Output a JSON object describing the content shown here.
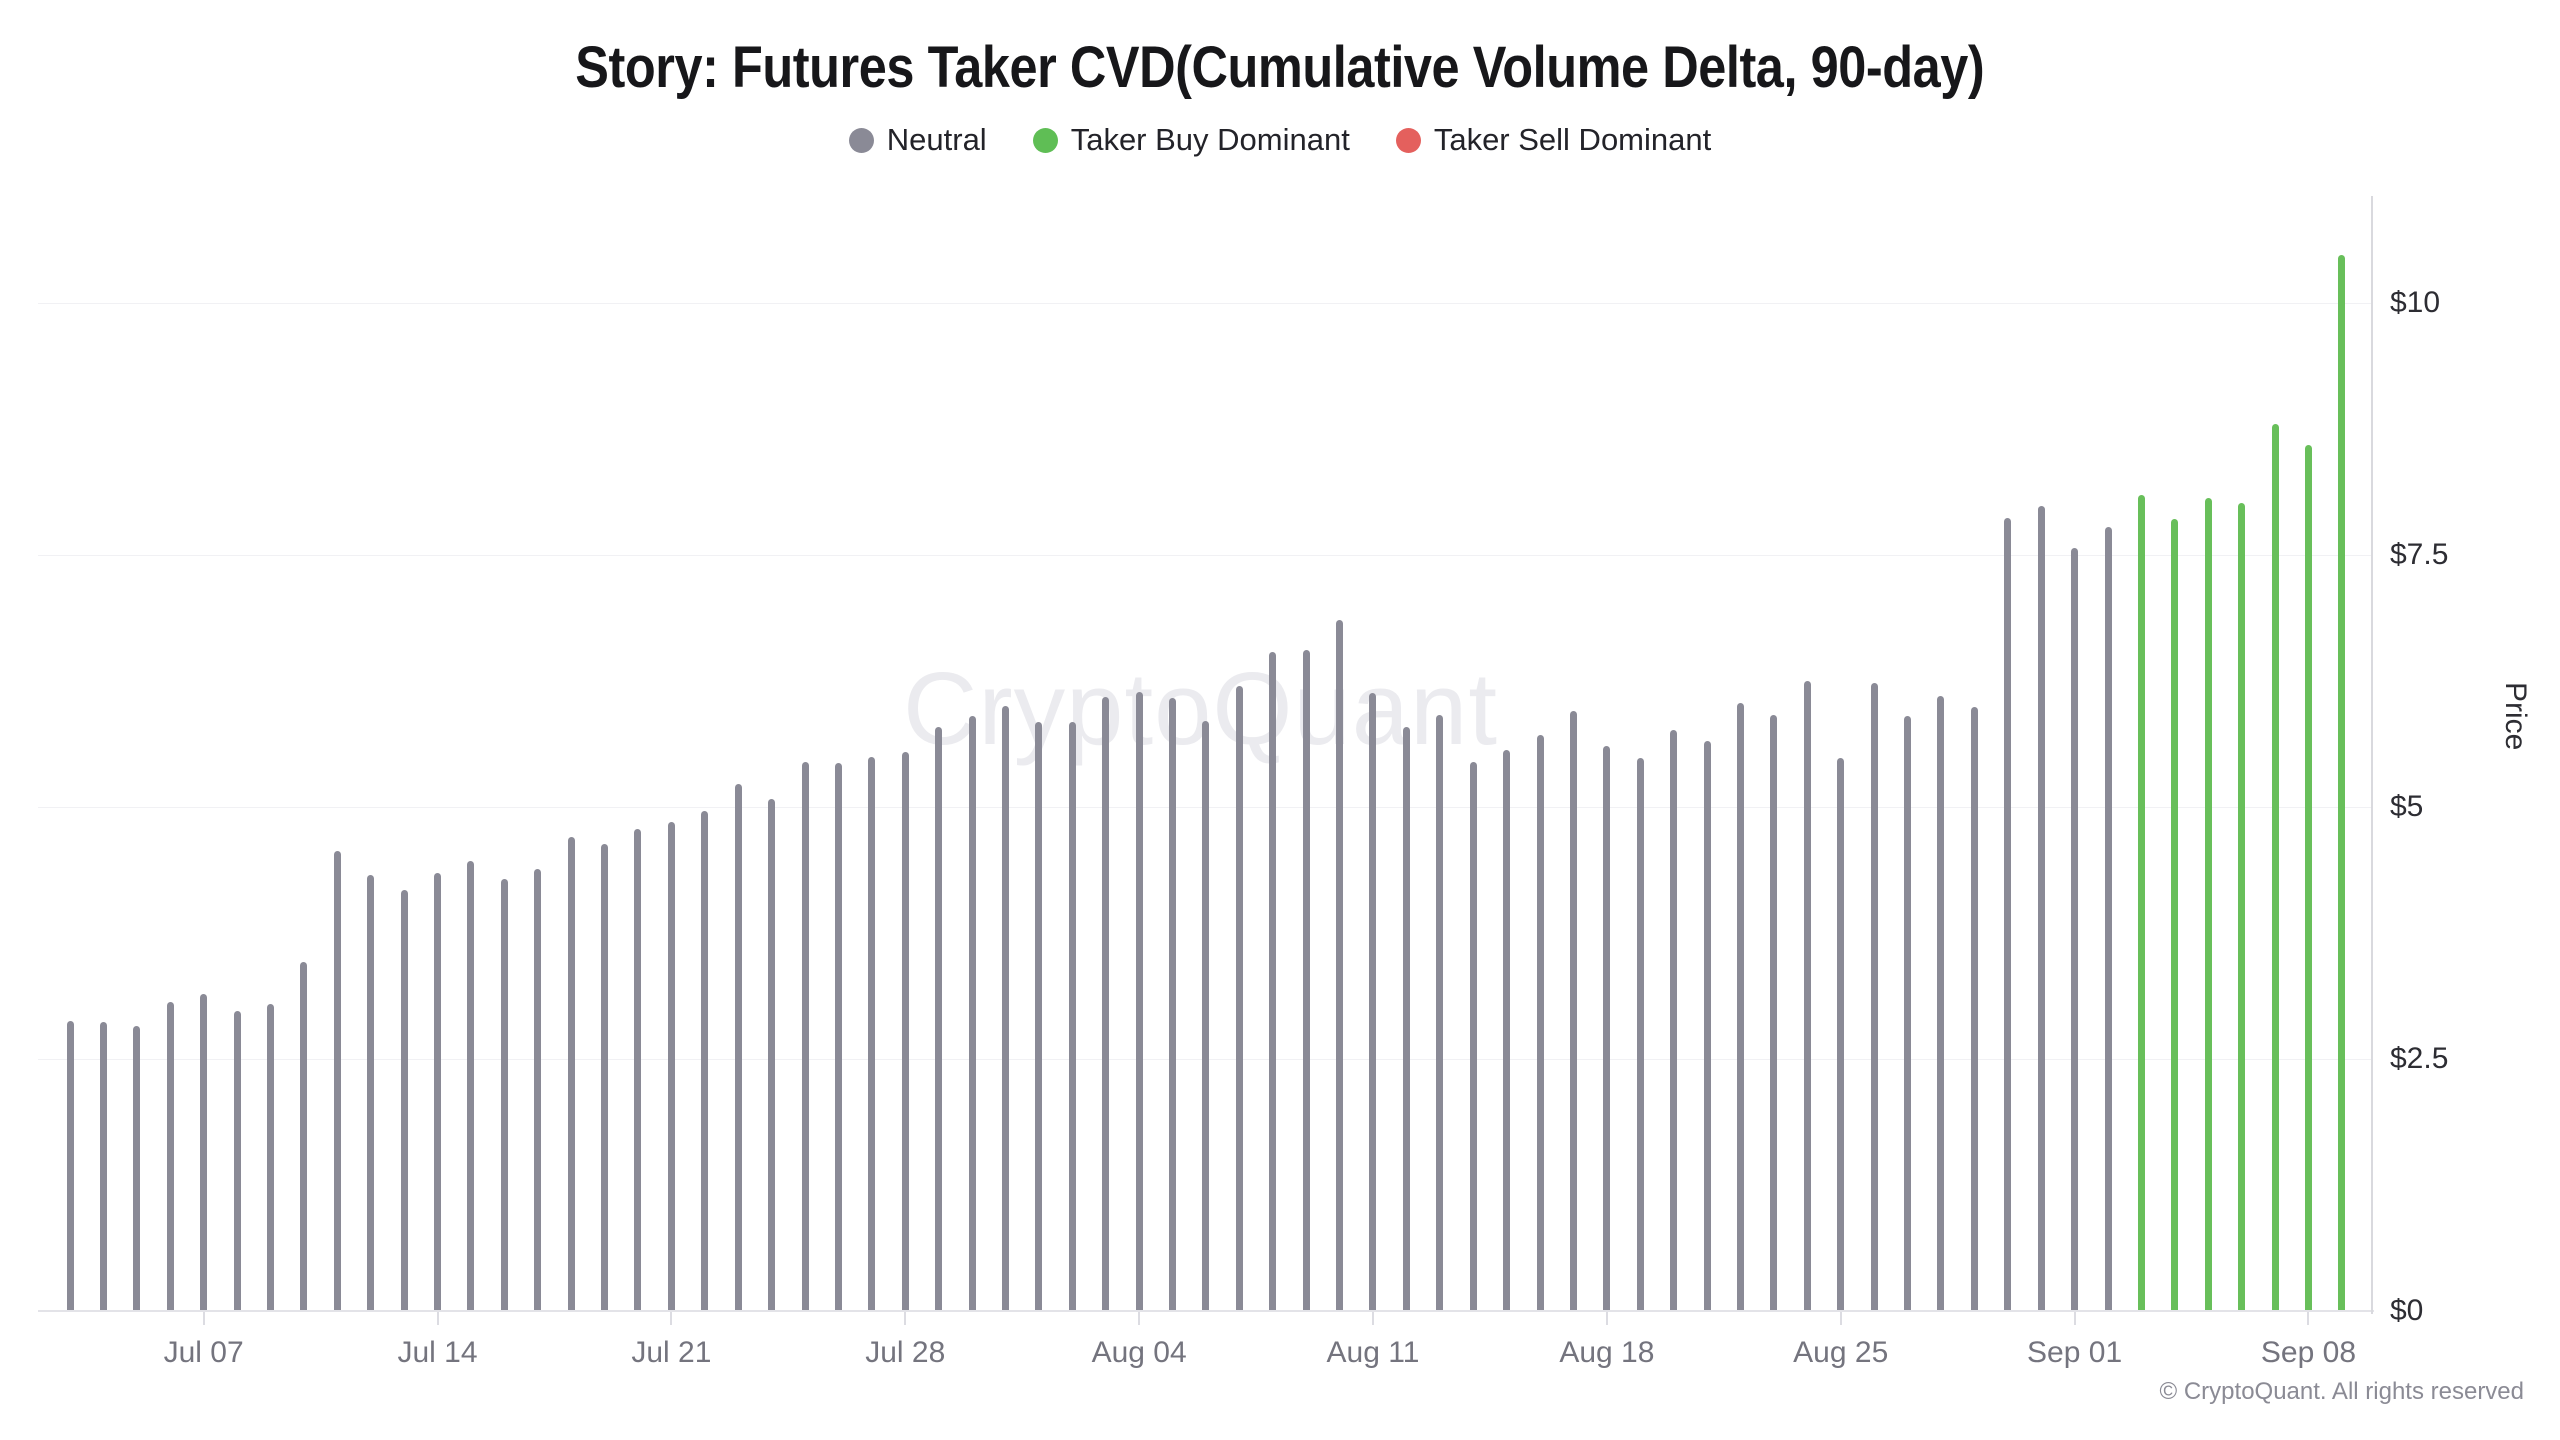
{
  "header": {
    "title": "Story: Futures Taker CVD(Cumulative Volume Delta, 90-day)"
  },
  "legend": {
    "items": [
      {
        "label": "Neutral",
        "status": "neutral",
        "color": "#8a8a96"
      },
      {
        "label": "Taker Buy Dominant",
        "status": "buy",
        "color": "#5fbe55"
      },
      {
        "label": "Taker Sell Dominant",
        "status": "sell",
        "color": "#e4605d"
      }
    ]
  },
  "watermark": "CryptoQuant",
  "footer": {
    "copyright": "© CryptoQuant. All rights reserved"
  },
  "chart_data": {
    "type": "bar",
    "title": "Story: Futures Taker CVD(Cumulative Volume Delta, 90-day)",
    "xlabel": "",
    "ylabel": "Price",
    "ylim": [
      0,
      10.7
    ],
    "grid": "horizontal-only",
    "legend_position": "top",
    "status_colors": {
      "neutral": "#8a8a96",
      "buy": "#68bf5a",
      "sell": "#e4605d"
    },
    "y_ticks": [
      {
        "label": "$0",
        "value": 0
      },
      {
        "label": "$2.5",
        "value": 2.5
      },
      {
        "label": "$5",
        "value": 5
      },
      {
        "label": "$7.5",
        "value": 7.5
      },
      {
        "label": "$10",
        "value": 10
      }
    ],
    "x_tick_labels": [
      {
        "label": "Jul 07",
        "index": 4
      },
      {
        "label": "Jul 14",
        "index": 11
      },
      {
        "label": "Jul 21",
        "index": 18
      },
      {
        "label": "Jul 28",
        "index": 25
      },
      {
        "label": "Aug 04",
        "index": 32
      },
      {
        "label": "Aug 11",
        "index": 39
      },
      {
        "label": "Aug 18",
        "index": 46
      },
      {
        "label": "Aug 25",
        "index": 53
      },
      {
        "label": "Sep 01",
        "index": 60
      },
      {
        "label": "Sep 08",
        "index": 67
      }
    ],
    "points": [
      {
        "date": "Jul 03",
        "value": 2.88,
        "status": "neutral"
      },
      {
        "date": "Jul 04",
        "value": 2.87,
        "status": "neutral"
      },
      {
        "date": "Jul 05",
        "value": 2.83,
        "status": "neutral"
      },
      {
        "date": "Jul 06",
        "value": 3.07,
        "status": "neutral"
      },
      {
        "date": "Jul 07",
        "value": 3.14,
        "status": "neutral"
      },
      {
        "date": "Jul 08",
        "value": 2.98,
        "status": "neutral"
      },
      {
        "date": "Jul 09",
        "value": 3.05,
        "status": "neutral"
      },
      {
        "date": "Jul 10",
        "value": 3.46,
        "status": "neutral"
      },
      {
        "date": "Jul 11",
        "value": 4.56,
        "status": "neutral"
      },
      {
        "date": "Jul 12",
        "value": 4.33,
        "status": "neutral"
      },
      {
        "date": "Jul 13",
        "value": 4.18,
        "status": "neutral"
      },
      {
        "date": "Jul 14",
        "value": 4.35,
        "status": "neutral"
      },
      {
        "date": "Jul 15",
        "value": 4.46,
        "status": "neutral"
      },
      {
        "date": "Jul 16",
        "value": 4.29,
        "status": "neutral"
      },
      {
        "date": "Jul 17",
        "value": 4.38,
        "status": "neutral"
      },
      {
        "date": "Jul 18",
        "value": 4.7,
        "status": "neutral"
      },
      {
        "date": "Jul 19",
        "value": 4.63,
        "status": "neutral"
      },
      {
        "date": "Jul 20",
        "value": 4.78,
        "status": "neutral"
      },
      {
        "date": "Jul 21",
        "value": 4.85,
        "status": "neutral"
      },
      {
        "date": "Jul 22",
        "value": 4.96,
        "status": "neutral"
      },
      {
        "date": "Jul 23",
        "value": 5.23,
        "status": "neutral"
      },
      {
        "date": "Jul 24",
        "value": 5.08,
        "status": "neutral"
      },
      {
        "date": "Jul 25",
        "value": 5.45,
        "status": "neutral"
      },
      {
        "date": "Jul 26",
        "value": 5.44,
        "status": "neutral"
      },
      {
        "date": "Jul 27",
        "value": 5.5,
        "status": "neutral"
      },
      {
        "date": "Jul 28",
        "value": 5.55,
        "status": "neutral"
      },
      {
        "date": "Jul 29",
        "value": 5.79,
        "status": "neutral"
      },
      {
        "date": "Jul 30",
        "value": 5.9,
        "status": "neutral"
      },
      {
        "date": "Jul 31",
        "value": 6.0,
        "status": "neutral"
      },
      {
        "date": "Aug 01",
        "value": 5.84,
        "status": "neutral"
      },
      {
        "date": "Aug 02",
        "value": 5.84,
        "status": "neutral"
      },
      {
        "date": "Aug 03",
        "value": 6.09,
        "status": "neutral"
      },
      {
        "date": "Aug 04",
        "value": 6.14,
        "status": "neutral"
      },
      {
        "date": "Aug 05",
        "value": 6.08,
        "status": "neutral"
      },
      {
        "date": "Aug 06",
        "value": 5.85,
        "status": "neutral"
      },
      {
        "date": "Aug 07",
        "value": 6.2,
        "status": "neutral"
      },
      {
        "date": "Aug 08",
        "value": 6.54,
        "status": "neutral"
      },
      {
        "date": "Aug 09",
        "value": 6.56,
        "status": "neutral"
      },
      {
        "date": "Aug 10",
        "value": 6.86,
        "status": "neutral"
      },
      {
        "date": "Aug 11",
        "value": 6.13,
        "status": "neutral"
      },
      {
        "date": "Aug 12",
        "value": 5.79,
        "status": "neutral"
      },
      {
        "date": "Aug 13",
        "value": 5.91,
        "status": "neutral"
      },
      {
        "date": "Aug 14",
        "value": 5.45,
        "status": "neutral"
      },
      {
        "date": "Aug 15",
        "value": 5.57,
        "status": "neutral"
      },
      {
        "date": "Aug 16",
        "value": 5.71,
        "status": "neutral"
      },
      {
        "date": "Aug 17",
        "value": 5.95,
        "status": "neutral"
      },
      {
        "date": "Aug 18",
        "value": 5.61,
        "status": "neutral"
      },
      {
        "date": "Aug 19",
        "value": 5.49,
        "status": "neutral"
      },
      {
        "date": "Aug 20",
        "value": 5.76,
        "status": "neutral"
      },
      {
        "date": "Aug 21",
        "value": 5.65,
        "status": "neutral"
      },
      {
        "date": "Aug 22",
        "value": 6.03,
        "status": "neutral"
      },
      {
        "date": "Aug 23",
        "value": 5.91,
        "status": "neutral"
      },
      {
        "date": "Aug 24",
        "value": 6.25,
        "status": "neutral"
      },
      {
        "date": "Aug 25",
        "value": 5.49,
        "status": "neutral"
      },
      {
        "date": "Aug 26",
        "value": 6.23,
        "status": "neutral"
      },
      {
        "date": "Aug 27",
        "value": 5.9,
        "status": "neutral"
      },
      {
        "date": "Aug 28",
        "value": 6.1,
        "status": "neutral"
      },
      {
        "date": "Aug 29",
        "value": 5.99,
        "status": "neutral"
      },
      {
        "date": "Aug 30",
        "value": 7.87,
        "status": "neutral"
      },
      {
        "date": "Aug 31",
        "value": 7.99,
        "status": "neutral"
      },
      {
        "date": "Sep 01",
        "value": 7.57,
        "status": "neutral"
      },
      {
        "date": "Sep 02",
        "value": 7.78,
        "status": "neutral"
      },
      {
        "date": "Sep 03",
        "value": 8.1,
        "status": "buy"
      },
      {
        "date": "Sep 04",
        "value": 7.86,
        "status": "buy"
      },
      {
        "date": "Sep 05",
        "value": 8.07,
        "status": "buy"
      },
      {
        "date": "Sep 06",
        "value": 8.02,
        "status": "buy"
      },
      {
        "date": "Sep 07",
        "value": 8.8,
        "status": "buy"
      },
      {
        "date": "Sep 08",
        "value": 8.59,
        "status": "buy"
      },
      {
        "date": "Sep 09",
        "value": 10.48,
        "status": "buy"
      }
    ]
  }
}
